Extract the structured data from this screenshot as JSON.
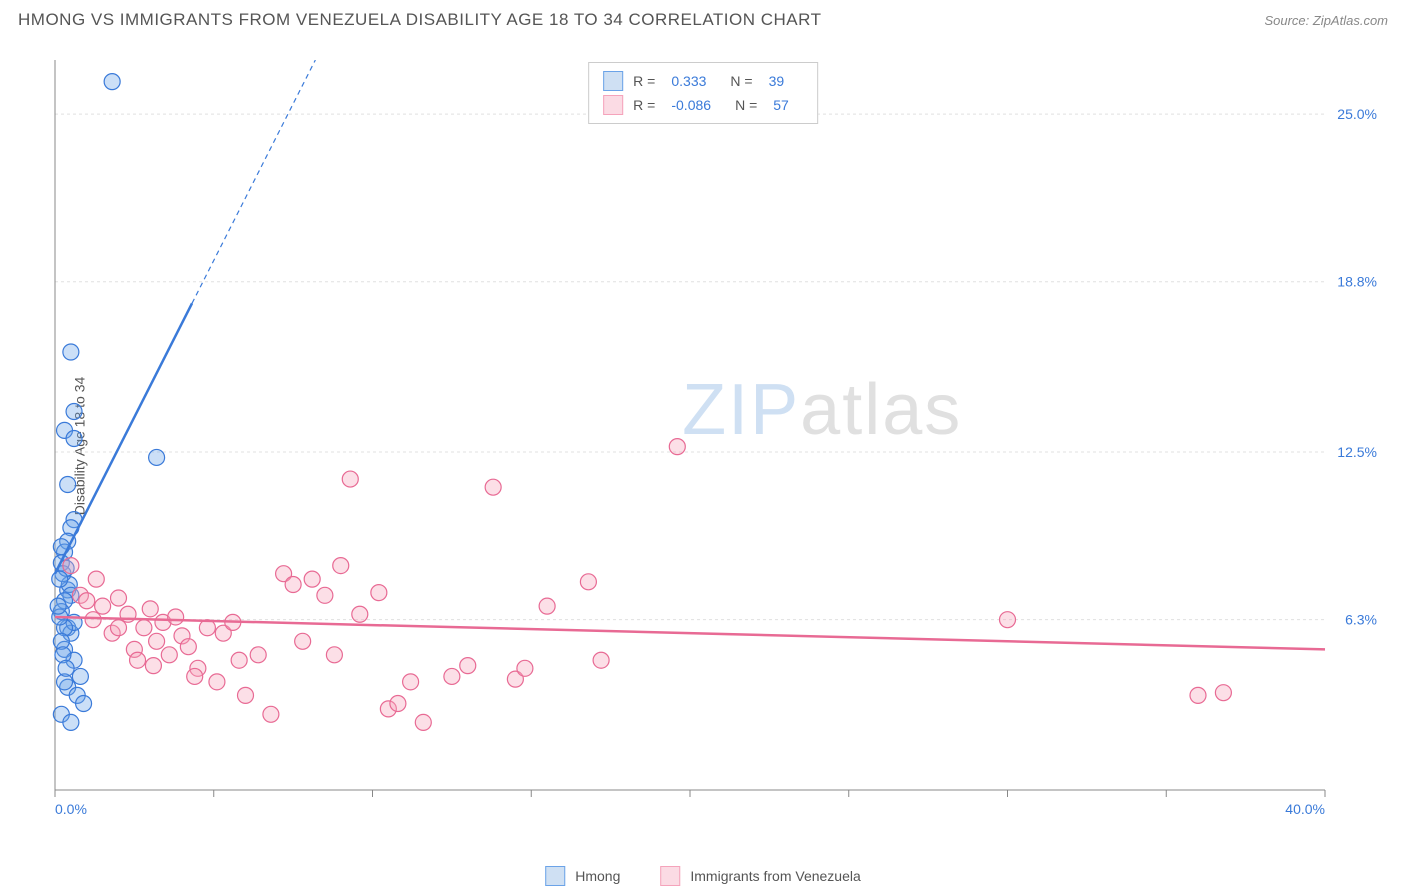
{
  "header": {
    "title": "HMONG VS IMMIGRANTS FROM VENEZUELA DISABILITY AGE 18 TO 34 CORRELATION CHART",
    "source": "Source: ZipAtlas.com"
  },
  "chart": {
    "type": "scatter",
    "y_axis_label": "Disability Age 18 to 34",
    "xlim": [
      0,
      40
    ],
    "ylim": [
      0,
      27
    ],
    "x_tick_positions": [
      0,
      5,
      10,
      15,
      20,
      25,
      30,
      35,
      40
    ],
    "x_tick_labels_shown": {
      "0": "0.0%",
      "40": "40.0%"
    },
    "y_tick_positions": [
      6.3,
      12.5,
      18.8,
      25.0
    ],
    "y_tick_labels": [
      "6.3%",
      "12.5%",
      "18.8%",
      "25.0%"
    ],
    "grid_color": "#e0e0e0",
    "axis_line_color": "#888888",
    "background_color": "#ffffff",
    "label_color": "#3a7ad9",
    "title_fontsize": 17,
    "label_fontsize": 14,
    "tick_fontsize": 14,
    "marker_radius": 8,
    "marker_fill_opacity": 0.35,
    "marker_stroke_width": 1.2,
    "trend_line_width_solid": 2.5,
    "trend_line_width_dash": 1.2,
    "series": [
      {
        "name": "Hmong",
        "color": "#6ba3e8",
        "stroke": "#3a7ad9",
        "r_value": "0.333",
        "n_value": "39",
        "trend": {
          "x1": 0,
          "y1": 8.0,
          "x2": 8.2,
          "y2": 27.0,
          "dash_after_y": 18.0
        },
        "points": [
          [
            1.8,
            26.2
          ],
          [
            0.5,
            16.2
          ],
          [
            0.6,
            14.0
          ],
          [
            0.3,
            13.3
          ],
          [
            3.2,
            12.3
          ],
          [
            0.6,
            13.0
          ],
          [
            0.4,
            11.3
          ],
          [
            0.6,
            10.0
          ],
          [
            0.5,
            9.7
          ],
          [
            0.4,
            9.2
          ],
          [
            0.3,
            8.8
          ],
          [
            0.2,
            8.4
          ],
          [
            0.4,
            7.4
          ],
          [
            0.45,
            7.6
          ],
          [
            0.5,
            7.2
          ],
          [
            0.3,
            7.0
          ],
          [
            0.2,
            6.6
          ],
          [
            0.25,
            8.0
          ],
          [
            0.35,
            8.2
          ],
          [
            0.15,
            7.8
          ],
          [
            0.2,
            9.0
          ],
          [
            0.4,
            6.0
          ],
          [
            0.5,
            5.8
          ],
          [
            0.3,
            5.2
          ],
          [
            0.6,
            4.8
          ],
          [
            0.8,
            4.2
          ],
          [
            0.4,
            3.8
          ],
          [
            0.7,
            3.5
          ],
          [
            0.3,
            4.0
          ],
          [
            0.9,
            3.2
          ],
          [
            0.2,
            2.8
          ],
          [
            0.5,
            2.5
          ],
          [
            0.6,
            6.2
          ],
          [
            0.3,
            6.0
          ],
          [
            0.2,
            5.5
          ],
          [
            0.15,
            6.4
          ],
          [
            0.25,
            5.0
          ],
          [
            0.35,
            4.5
          ],
          [
            0.1,
            6.8
          ]
        ]
      },
      {
        "name": "Immigrants from Venezuela",
        "color": "#f5a3bb",
        "stroke": "#e86a94",
        "r_value": "-0.086",
        "n_value": "57",
        "trend": {
          "x1": 0,
          "y1": 6.4,
          "x2": 40,
          "y2": 5.2
        },
        "points": [
          [
            0.5,
            8.3
          ],
          [
            0.8,
            7.2
          ],
          [
            1.0,
            7.0
          ],
          [
            1.2,
            6.3
          ],
          [
            1.5,
            6.8
          ],
          [
            1.8,
            5.8
          ],
          [
            2.0,
            7.1
          ],
          [
            2.0,
            6.0
          ],
          [
            2.3,
            6.5
          ],
          [
            2.5,
            5.2
          ],
          [
            2.8,
            6.0
          ],
          [
            3.0,
            6.7
          ],
          [
            3.2,
            5.5
          ],
          [
            3.4,
            6.2
          ],
          [
            3.6,
            5.0
          ],
          [
            3.8,
            6.4
          ],
          [
            4.0,
            5.7
          ],
          [
            4.2,
            5.3
          ],
          [
            4.5,
            4.5
          ],
          [
            4.8,
            6.0
          ],
          [
            5.1,
            4.0
          ],
          [
            5.3,
            5.8
          ],
          [
            5.6,
            6.2
          ],
          [
            6.0,
            3.5
          ],
          [
            6.4,
            5.0
          ],
          [
            6.8,
            2.8
          ],
          [
            7.2,
            8.0
          ],
          [
            7.5,
            7.6
          ],
          [
            8.1,
            7.8
          ],
          [
            8.5,
            7.2
          ],
          [
            9.0,
            8.3
          ],
          [
            9.3,
            11.5
          ],
          [
            9.6,
            6.5
          ],
          [
            10.2,
            7.3
          ],
          [
            10.5,
            3.0
          ],
          [
            10.8,
            3.2
          ],
          [
            11.2,
            4.0
          ],
          [
            11.6,
            2.5
          ],
          [
            12.5,
            4.2
          ],
          [
            13.0,
            4.6
          ],
          [
            13.8,
            11.2
          ],
          [
            14.5,
            4.1
          ],
          [
            14.8,
            4.5
          ],
          [
            15.5,
            6.8
          ],
          [
            16.8,
            7.7
          ],
          [
            17.2,
            4.8
          ],
          [
            19.6,
            12.7
          ],
          [
            30.0,
            6.3
          ],
          [
            36.0,
            3.5
          ],
          [
            36.8,
            3.6
          ],
          [
            1.3,
            7.8
          ],
          [
            2.6,
            4.8
          ],
          [
            3.1,
            4.6
          ],
          [
            4.4,
            4.2
          ],
          [
            5.8,
            4.8
          ],
          [
            7.8,
            5.5
          ],
          [
            8.8,
            5.0
          ]
        ]
      }
    ],
    "watermark": {
      "zip": "ZIP",
      "atlas": "atlas"
    },
    "legend_bottom": [
      {
        "label": "Hmong",
        "swatch_fill": "#cfe0f3",
        "swatch_border": "#6ba3e8"
      },
      {
        "label": "Immigrants from Venezuela",
        "swatch_fill": "#fbdbe4",
        "swatch_border": "#f5a3bb"
      }
    ]
  }
}
